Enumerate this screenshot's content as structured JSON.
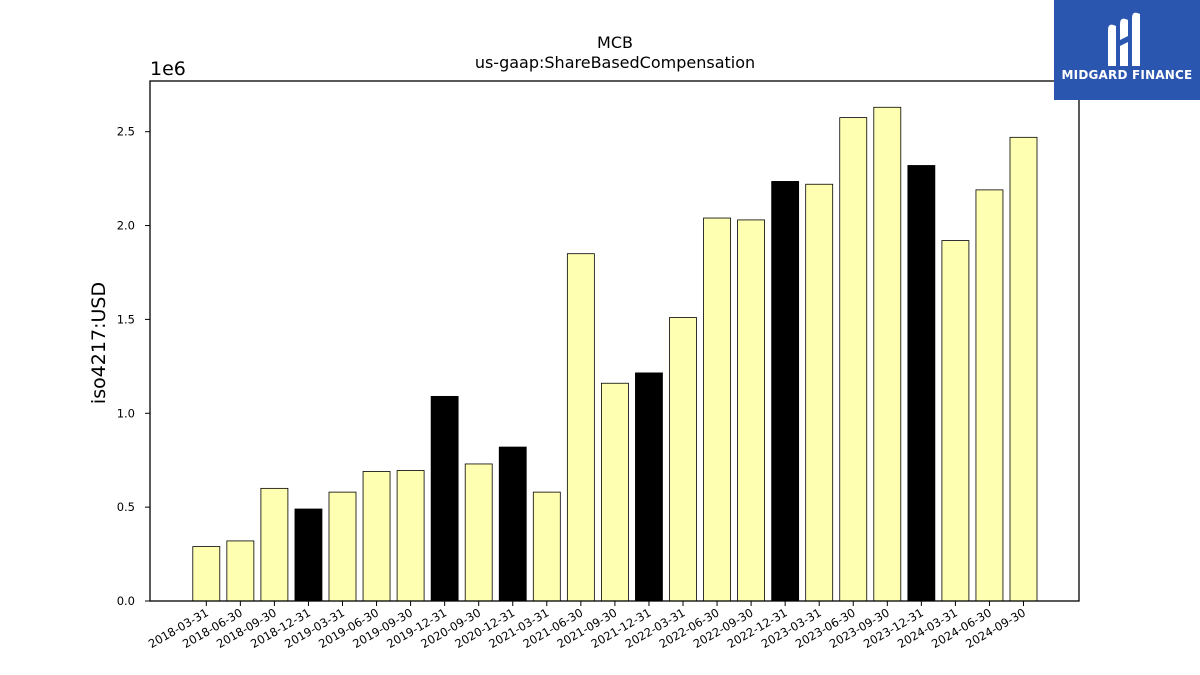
{
  "logo": {
    "text": "MIDGARD FINANCE"
  },
  "chart_data": {
    "type": "bar",
    "title": "MCB",
    "subtitle": "us-gaap:ShareBasedCompensation",
    "xlabel": "",
    "ylabel": "iso4217:USD",
    "y_offset_label": "1e6",
    "ylim": [
      0,
      2.77
    ],
    "yticks": [
      "0.0",
      "0.5",
      "1.0",
      "1.5",
      "2.0",
      "2.5"
    ],
    "categories": [
      "2018-03-31",
      "2018-06-30",
      "2018-09-30",
      "2018-12-31",
      "2019-03-31",
      "2019-06-30",
      "2019-09-30",
      "2019-12-31",
      "2020-09-30",
      "2020-12-31",
      "2021-03-31",
      "2021-06-30",
      "2021-09-30",
      "2021-12-31",
      "2022-03-31",
      "2022-06-30",
      "2022-09-30",
      "2022-12-31",
      "2023-03-31",
      "2023-06-30",
      "2023-09-30",
      "2023-12-31",
      "2024-03-31",
      "2024-06-30",
      "2024-09-30"
    ],
    "values": [
      0.29,
      0.32,
      0.6,
      0.49,
      0.58,
      0.69,
      0.695,
      1.09,
      0.73,
      0.82,
      0.58,
      1.85,
      1.16,
      1.215,
      1.51,
      2.04,
      2.03,
      2.235,
      2.22,
      2.575,
      2.63,
      2.32,
      1.92,
      2.19,
      2.47
    ],
    "bar_colors": [
      "#ffffb2",
      "#ffffb2",
      "#ffffb2",
      "#000000",
      "#ffffb2",
      "#ffffb2",
      "#ffffb2",
      "#000000",
      "#ffffb2",
      "#000000",
      "#ffffb2",
      "#ffffb2",
      "#ffffb2",
      "#000000",
      "#ffffb2",
      "#ffffb2",
      "#ffffb2",
      "#000000",
      "#ffffb2",
      "#ffffb2",
      "#ffffb2",
      "#000000",
      "#ffffb2",
      "#ffffb2",
      "#ffffb2"
    ],
    "grid": false,
    "legend": "none"
  }
}
